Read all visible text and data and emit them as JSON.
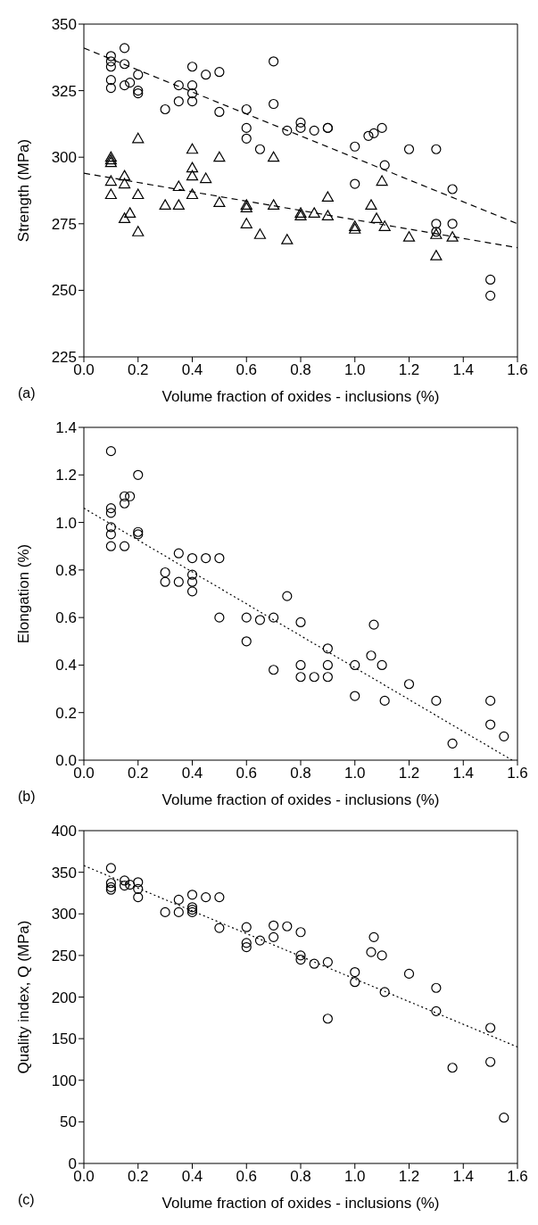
{
  "chart_data": [
    {
      "type": "scatter",
      "ylabel": "Strength (MPa)",
      "xlabel": "Volume fraction of oxides - inclusions (%)",
      "annotations": [
        "(a)"
      ],
      "xlim": [
        0,
        1.6
      ],
      "ylim": [
        225,
        350
      ],
      "xticks": [
        {
          "value": 0,
          "label": "0.0"
        },
        {
          "value": 0.2,
          "label": "0.2"
        },
        {
          "value": 0.4,
          "label": "0.4"
        },
        {
          "value": 0.6,
          "label": "0.6"
        },
        {
          "value": 0.8,
          "label": "0.8"
        },
        {
          "value": 1,
          "label": "1.0"
        },
        {
          "value": 1.2,
          "label": "1.2"
        },
        {
          "value": 1.4,
          "label": "1.4"
        },
        {
          "value": 1.6,
          "label": "1.6"
        }
      ],
      "yticks": [
        225,
        250,
        275,
        300,
        325,
        350
      ],
      "series": [
        {
          "type": "scatter",
          "marker": "circle",
          "color": "#000000",
          "x": [
            0.1,
            0.1,
            0.1,
            0.1,
            0.1,
            0.15,
            0.15,
            0.15,
            0.17,
            0.2,
            0.2,
            0.2,
            0.3,
            0.35,
            0.35,
            0.4,
            0.4,
            0.4,
            0.4,
            0.45,
            0.5,
            0.5,
            0.6,
            0.6,
            0.6,
            0.65,
            0.7,
            0.7,
            0.75,
            0.8,
            0.8,
            0.85,
            0.9,
            0.9,
            1.0,
            1.0,
            1.05,
            1.07,
            1.1,
            1.11,
            1.2,
            1.3,
            1.3,
            1.3,
            1.36,
            1.36,
            1.5,
            1.5
          ],
          "values": [
            338,
            336,
            334,
            329,
            326,
            341,
            335,
            327,
            328,
            331,
            325,
            324,
            318,
            327,
            321,
            334,
            327,
            324,
            321,
            331,
            332,
            317,
            318,
            311,
            307,
            303,
            336,
            320,
            310,
            313,
            311,
            310,
            311,
            311,
            304,
            290,
            308,
            309,
            311,
            297,
            303,
            303,
            275,
            272,
            288,
            275,
            254,
            248
          ]
        },
        {
          "type": "scatter",
          "marker": "triangle",
          "color": "#000000",
          "x": [
            0.1,
            0.1,
            0.1,
            0.1,
            0.1,
            0.15,
            0.15,
            0.15,
            0.17,
            0.2,
            0.2,
            0.2,
            0.3,
            0.35,
            0.35,
            0.4,
            0.4,
            0.4,
            0.4,
            0.45,
            0.5,
            0.5,
            0.6,
            0.6,
            0.6,
            0.65,
            0.7,
            0.7,
            0.75,
            0.8,
            0.8,
            0.85,
            0.9,
            0.9,
            1.0,
            1.0,
            1.06,
            1.08,
            1.1,
            1.11,
            1.2,
            1.3,
            1.3,
            1.36
          ],
          "values": [
            300,
            299,
            298,
            291,
            286,
            293,
            290,
            277,
            279,
            307,
            286,
            272,
            282,
            289,
            282,
            303,
            296,
            293,
            286,
            292,
            300,
            283,
            282,
            281,
            275,
            271,
            300,
            282,
            269,
            279,
            278,
            279,
            285,
            278,
            274,
            273,
            282,
            277,
            291,
            274,
            270,
            271,
            263,
            270
          ]
        },
        {
          "type": "line",
          "line_style": "dashed",
          "marker": "none",
          "color": "#000000",
          "x": [
            0,
            1.6
          ],
          "values": [
            341,
            275
          ]
        },
        {
          "type": "line",
          "line_style": "dashed",
          "marker": "none",
          "color": "#000000",
          "x": [
            0,
            1.6
          ],
          "values": [
            294,
            266
          ]
        }
      ]
    },
    {
      "type": "scatter",
      "ylabel": "Elongation (%)",
      "xlabel": "Volume fraction of oxides - inclusions (%)",
      "annotations": [
        "(b)"
      ],
      "xlim": [
        0,
        1.6
      ],
      "ylim": [
        0,
        1.4
      ],
      "xticks": [
        {
          "value": 0,
          "label": "0.0"
        },
        {
          "value": 0.2,
          "label": "0.2"
        },
        {
          "value": 0.4,
          "label": "0.4"
        },
        {
          "value": 0.6,
          "label": "0.6"
        },
        {
          "value": 0.8,
          "label": "0.8"
        },
        {
          "value": 1,
          "label": "1.0"
        },
        {
          "value": 1.2,
          "label": "1.2"
        },
        {
          "value": 1.4,
          "label": "1.4"
        },
        {
          "value": 1.6,
          "label": "1.6"
        }
      ],
      "yticks": [
        {
          "value": 0,
          "label": "0.0"
        },
        {
          "value": 0.2,
          "label": "0.2"
        },
        {
          "value": 0.4,
          "label": "0.4"
        },
        {
          "value": 0.6,
          "label": "0.6"
        },
        {
          "value": 0.8,
          "label": "0.8"
        },
        {
          "value": 1,
          "label": "1.0"
        },
        {
          "value": 1.2,
          "label": "1.2"
        },
        {
          "value": 1.4,
          "label": "1.4"
        }
      ],
      "series": [
        {
          "type": "scatter",
          "marker": "circle",
          "color": "#000000",
          "x": [
            0.1,
            0.1,
            0.1,
            0.1,
            0.1,
            0.1,
            0.15,
            0.15,
            0.15,
            0.17,
            0.2,
            0.2,
            0.2,
            0.3,
            0.3,
            0.35,
            0.35,
            0.4,
            0.4,
            0.4,
            0.4,
            0.45,
            0.5,
            0.5,
            0.6,
            0.6,
            0.65,
            0.7,
            0.7,
            0.75,
            0.8,
            0.8,
            0.8,
            0.85,
            0.9,
            0.9,
            0.9,
            1.0,
            1.0,
            1.06,
            1.07,
            1.1,
            1.11,
            1.2,
            1.3,
            1.36,
            1.5,
            1.5,
            1.55
          ],
          "values": [
            1.3,
            1.06,
            1.04,
            0.98,
            0.95,
            0.9,
            1.11,
            1.08,
            0.9,
            1.11,
            1.2,
            0.96,
            0.95,
            0.79,
            0.75,
            0.87,
            0.75,
            0.85,
            0.78,
            0.75,
            0.71,
            0.85,
            0.85,
            0.6,
            0.6,
            0.5,
            0.59,
            0.6,
            0.38,
            0.69,
            0.58,
            0.4,
            0.35,
            0.35,
            0.47,
            0.4,
            0.35,
            0.4,
            0.27,
            0.44,
            0.57,
            0.4,
            0.25,
            0.32,
            0.25,
            0.07,
            0.25,
            0.15,
            0.1
          ]
        },
        {
          "type": "line",
          "line_style": "dotted",
          "marker": "none",
          "color": "#000000",
          "x": [
            0,
            1.58
          ],
          "values": [
            1.06,
            0
          ]
        }
      ]
    },
    {
      "type": "scatter",
      "ylabel": "Quality index, Q (MPa)",
      "xlabel": "Volume fraction of oxides - inclusions (%)",
      "annotations": [
        "(c)"
      ],
      "xlim": [
        0,
        1.6
      ],
      "ylim": [
        0,
        400
      ],
      "xticks": [
        {
          "value": 0,
          "label": "0.0"
        },
        {
          "value": 0.2,
          "label": "0.2"
        },
        {
          "value": 0.4,
          "label": "0.4"
        },
        {
          "value": 0.6,
          "label": "0.6"
        },
        {
          "value": 0.8,
          "label": "0.8"
        },
        {
          "value": 1,
          "label": "1.0"
        },
        {
          "value": 1.2,
          "label": "1.2"
        },
        {
          "value": 1.4,
          "label": "1.4"
        },
        {
          "value": 1.6,
          "label": "1.6"
        }
      ],
      "yticks": [
        0,
        50,
        100,
        150,
        200,
        250,
        300,
        350,
        400
      ],
      "series": [
        {
          "type": "scatter",
          "marker": "circle",
          "color": "#000000",
          "x": [
            0.1,
            0.1,
            0.1,
            0.1,
            0.15,
            0.15,
            0.17,
            0.2,
            0.2,
            0.2,
            0.3,
            0.35,
            0.35,
            0.4,
            0.4,
            0.4,
            0.4,
            0.45,
            0.5,
            0.5,
            0.6,
            0.6,
            0.6,
            0.65,
            0.7,
            0.7,
            0.75,
            0.8,
            0.8,
            0.8,
            0.85,
            0.9,
            0.9,
            1.0,
            1.0,
            1.06,
            1.07,
            1.1,
            1.11,
            1.2,
            1.3,
            1.3,
            1.36,
            1.5,
            1.5,
            1.55
          ],
          "values": [
            355,
            337,
            332,
            329,
            340,
            334,
            335,
            338,
            330,
            320,
            302,
            317,
            302,
            323,
            308,
            305,
            302,
            320,
            320,
            283,
            284,
            265,
            260,
            268,
            286,
            272,
            285,
            278,
            250,
            245,
            240,
            242,
            174,
            230,
            218,
            254,
            272,
            250,
            206,
            228,
            211,
            183,
            115,
            163,
            122,
            55
          ]
        },
        {
          "type": "line",
          "line_style": "dotted",
          "marker": "none",
          "color": "#000000",
          "x": [
            0,
            1.6
          ],
          "values": [
            358,
            140
          ]
        }
      ]
    }
  ]
}
